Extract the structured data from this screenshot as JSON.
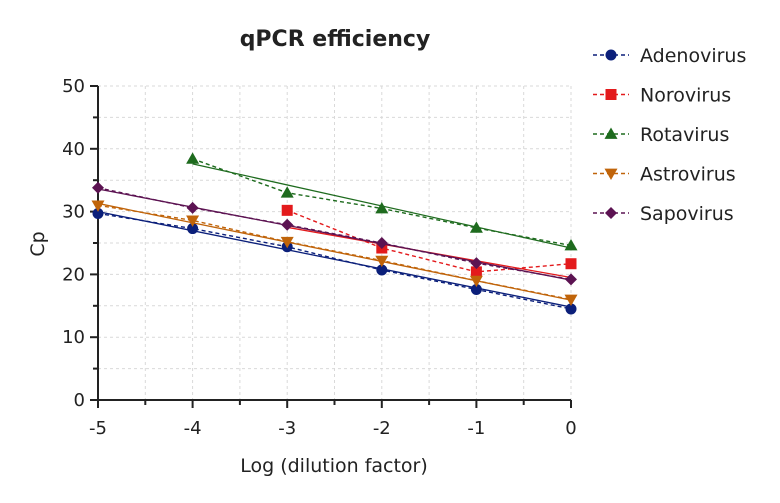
{
  "chart_data": {
    "type": "scatter",
    "title": "qPCR efficiency",
    "xlabel": "Log (dilution factor)",
    "ylabel": "Cp",
    "xlim": [
      -5,
      0
    ],
    "ylim": [
      0,
      50
    ],
    "xticks": [
      -5,
      -4,
      -3,
      -2,
      -1,
      0
    ],
    "yticks": [
      0,
      10,
      20,
      30,
      40,
      50
    ],
    "grid": true,
    "legend_position": "right",
    "series": [
      {
        "name": "Adenovirus",
        "color": "#0b1f7a",
        "marker": "circle",
        "points": [
          [
            -5,
            29.7
          ],
          [
            -4,
            27.3
          ],
          [
            -3,
            24.4
          ],
          [
            -2,
            20.7
          ],
          [
            -1,
            17.6
          ],
          [
            0,
            14.5
          ]
        ],
        "fit": [
          [
            -5,
            30.0
          ],
          [
            0,
            14.8
          ]
        ]
      },
      {
        "name": "Norovirus",
        "color": "#e31a1c",
        "marker": "square",
        "points": [
          [
            -3,
            30.2
          ],
          [
            -2,
            24.2
          ],
          [
            -1,
            20.4
          ],
          [
            0,
            21.7
          ]
        ],
        "fit": [
          [
            -3,
            27.5
          ],
          [
            0,
            19.5
          ]
        ]
      },
      {
        "name": "Rotavirus",
        "color": "#1e6b1e",
        "marker": "triangle-up",
        "points": [
          [
            -4,
            38.4
          ],
          [
            -3,
            33.0
          ],
          [
            -2,
            30.5
          ],
          [
            -1,
            27.4
          ],
          [
            0,
            24.6
          ]
        ],
        "fit": [
          [
            -4,
            37.6
          ],
          [
            0,
            24.2
          ]
        ]
      },
      {
        "name": "Astrovirus",
        "color": "#c0640a",
        "marker": "triangle-down",
        "points": [
          [
            -5,
            31.0
          ],
          [
            -4,
            28.6
          ],
          [
            -3,
            25.2
          ],
          [
            -2,
            22.2
          ],
          [
            -1,
            19.0
          ],
          [
            0,
            16.0
          ]
        ],
        "fit": [
          [
            -5,
            31.3
          ],
          [
            0,
            15.9
          ]
        ]
      },
      {
        "name": "Sapovirus",
        "color": "#5c1352",
        "marker": "diamond",
        "points": [
          [
            -5,
            33.8
          ],
          [
            -4,
            30.6
          ],
          [
            -3,
            27.9
          ],
          [
            -2,
            25.0
          ],
          [
            -1,
            21.8
          ],
          [
            0,
            19.2
          ]
        ],
        "fit": [
          [
            -5,
            33.6
          ],
          [
            0,
            19.1
          ]
        ]
      }
    ]
  }
}
